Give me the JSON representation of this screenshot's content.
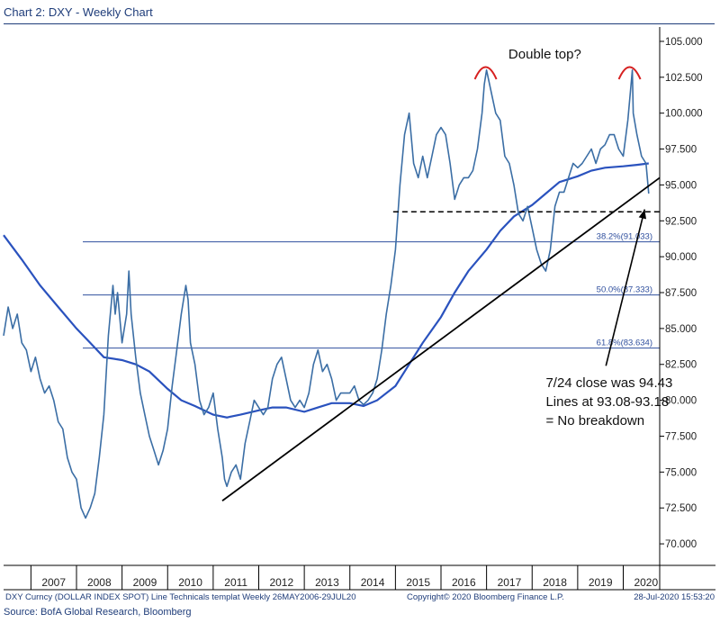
{
  "header": {
    "title": "Chart 2: DXY - Weekly Chart"
  },
  "footer": {
    "left": "DXY Curncy (DOLLAR INDEX SPOT) Line Technicals templat  Weekly 26MAY2006-29JUL20",
    "center": "Copyright© 2020 Bloomberg Finance L.P.",
    "right": "28-Jul-2020 15:53:20",
    "source": "Source: BofA Global Research, Bloomberg"
  },
  "chart_data": {
    "type": "line",
    "title": "",
    "xlabel": "",
    "ylabel": "",
    "xlim": [
      2006.4,
      2020.8
    ],
    "ylim": [
      68.5,
      106
    ],
    "x_ticks": [
      "2007",
      "2008",
      "2009",
      "2010",
      "2011",
      "2012",
      "2013",
      "2014",
      "2015",
      "2016",
      "2017",
      "2018",
      "2019",
      "2020"
    ],
    "y_ticks": [
      "105.000",
      "102.500",
      "100.000",
      "97.500",
      "95.000",
      "92.500",
      "90.000",
      "87.500",
      "85.000",
      "82.500",
      "80.000",
      "77.500",
      "75.000",
      "72.500",
      "70.000"
    ],
    "grid": false,
    "colors": {
      "price": "#3b6ea5",
      "ma": "#2a52be",
      "fib": "#2f4f9e",
      "trend": "#000000",
      "arc": "#d62020"
    },
    "series": [
      {
        "x": [
          2006.4,
          2006.5,
          2006.6,
          2006.7,
          2006.8,
          2006.9,
          2007.0,
          2007.1,
          2007.2,
          2007.3,
          2007.4,
          2007.5,
          2007.6,
          2007.7,
          2007.8,
          2007.9,
          2008.0,
          2008.1,
          2008.2,
          2008.3,
          2008.4,
          2008.5,
          2008.6,
          2008.7,
          2008.8,
          2008.85,
          2008.9,
          2009.0,
          2009.1,
          2009.15,
          2009.2,
          2009.3,
          2009.4,
          2009.5,
          2009.6,
          2009.7,
          2009.8,
          2009.9,
          2010.0,
          2010.1,
          2010.2,
          2010.3,
          2010.4,
          2010.45,
          2010.5,
          2010.6,
          2010.7,
          2010.8,
          2010.9,
          2011.0,
          2011.1,
          2011.2,
          2011.25,
          2011.3,
          2011.4,
          2011.5,
          2011.6,
          2011.7,
          2011.8,
          2011.9,
          2012.0,
          2012.1,
          2012.2,
          2012.3,
          2012.4,
          2012.5,
          2012.6,
          2012.7,
          2012.8,
          2012.9,
          2013.0,
          2013.1,
          2013.2,
          2013.3,
          2013.4,
          2013.5,
          2013.6,
          2013.7,
          2013.8,
          2013.9,
          2014.0,
          2014.1,
          2014.2,
          2014.3,
          2014.4,
          2014.5,
          2014.6,
          2014.7,
          2014.8,
          2014.9,
          2015.0,
          2015.1,
          2015.2,
          2015.3,
          2015.4,
          2015.5,
          2015.6,
          2015.7,
          2015.8,
          2015.9,
          2016.0,
          2016.1,
          2016.2,
          2016.3,
          2016.4,
          2016.5,
          2016.6,
          2016.7,
          2016.8,
          2016.9,
          2016.95,
          2017.0,
          2017.1,
          2017.2,
          2017.3,
          2017.4,
          2017.5,
          2017.6,
          2017.7,
          2017.8,
          2017.9,
          2018.0,
          2018.1,
          2018.2,
          2018.3,
          2018.4,
          2018.5,
          2018.6,
          2018.7,
          2018.8,
          2018.9,
          2019.0,
          2019.1,
          2019.2,
          2019.3,
          2019.4,
          2019.5,
          2019.6,
          2019.7,
          2019.8,
          2019.9,
          2020.0,
          2020.1,
          2020.2,
          2020.22,
          2020.3,
          2020.4,
          2020.5,
          2020.56
        ],
        "y": [
          84.5,
          86.5,
          85.0,
          86.0,
          84.0,
          83.5,
          82.0,
          83.0,
          81.5,
          80.5,
          81.0,
          80.0,
          78.5,
          78.0,
          76.0,
          75.0,
          74.5,
          72.5,
          71.8,
          72.5,
          73.5,
          76.0,
          79.0,
          84.5,
          88.0,
          86.0,
          87.5,
          84.0,
          86.0,
          89.0,
          86.0,
          83.0,
          80.5,
          79.0,
          77.5,
          76.5,
          75.5,
          76.5,
          78.0,
          81.0,
          83.5,
          86.0,
          88.0,
          87.0,
          84.0,
          82.5,
          80.0,
          79.0,
          79.5,
          80.5,
          78.0,
          76.0,
          74.5,
          74.0,
          75.0,
          75.5,
          74.5,
          77.0,
          78.5,
          80.0,
          79.5,
          79.0,
          79.5,
          81.5,
          82.5,
          83.0,
          81.5,
          80.0,
          79.5,
          80.0,
          79.5,
          80.5,
          82.5,
          83.5,
          82.0,
          82.5,
          81.5,
          80.0,
          80.5,
          80.5,
          80.5,
          81.0,
          80.0,
          79.7,
          80.0,
          80.5,
          81.5,
          83.5,
          86.0,
          88.0,
          90.5,
          95.0,
          98.5,
          100.0,
          96.5,
          95.5,
          97.0,
          95.5,
          97.0,
          98.5,
          99.0,
          98.5,
          96.5,
          94.0,
          95.0,
          95.5,
          95.5,
          96.0,
          97.5,
          100.0,
          102.0,
          103.0,
          101.5,
          100.0,
          99.5,
          97.0,
          96.5,
          95.0,
          93.0,
          92.5,
          93.5,
          92.0,
          90.5,
          89.5,
          89.0,
          90.5,
          93.5,
          94.5,
          94.5,
          95.5,
          96.5,
          96.2,
          96.5,
          97.0,
          97.5,
          96.5,
          97.5,
          97.8,
          98.5,
          98.5,
          97.5,
          97.0,
          99.5,
          103.0,
          100.0,
          98.5,
          97.0,
          96.5,
          94.4
        ]
      },
      {
        "x": [
          2006.4,
          2006.8,
          2007.2,
          2007.6,
          2008.0,
          2008.3,
          2008.6,
          2009.0,
          2009.3,
          2009.6,
          2010.0,
          2010.3,
          2010.6,
          2011.0,
          2011.3,
          2011.6,
          2012.0,
          2012.3,
          2012.6,
          2013.0,
          2013.3,
          2013.6,
          2014.0,
          2014.3,
          2014.6,
          2015.0,
          2015.3,
          2015.6,
          2016.0,
          2016.3,
          2016.6,
          2017.0,
          2017.3,
          2017.6,
          2018.0,
          2018.3,
          2018.6,
          2019.0,
          2019.3,
          2019.6,
          2020.0,
          2020.3,
          2020.56
        ],
        "y": [
          91.5,
          89.8,
          88.0,
          86.5,
          85.0,
          84.0,
          83.0,
          82.8,
          82.5,
          82.0,
          80.8,
          80.0,
          79.6,
          79.0,
          78.8,
          79.0,
          79.3,
          79.5,
          79.5,
          79.2,
          79.5,
          79.8,
          79.8,
          79.6,
          80.0,
          81.0,
          82.5,
          84.0,
          85.8,
          87.5,
          89.0,
          90.5,
          91.8,
          92.8,
          93.6,
          94.4,
          95.2,
          95.6,
          96.0,
          96.2,
          96.3,
          96.4,
          96.5
        ]
      }
    ],
    "fib_levels": [
      {
        "label": "38.2%(91.033)",
        "y": 91.033
      },
      {
        "label": "50.0%(87.333)",
        "y": 87.333
      },
      {
        "label": "61.8%(83.634)",
        "y": 83.634
      }
    ],
    "support_level": 93.13,
    "support_x": [
      2014.95,
      2020.8
    ],
    "trendline": {
      "x": [
        2011.2,
        2020.8
      ],
      "y": [
        73.0,
        95.5
      ]
    },
    "arcs": [
      {
        "x": 2016.98,
        "y": 102.8
      },
      {
        "x": 2020.14,
        "y": 102.8
      }
    ],
    "arrow": {
      "from": [
        2019.62,
        82.4
      ],
      "to": [
        2020.47,
        93.3
      ]
    },
    "annotations": {
      "double_top": "Double top?",
      "note_lines": [
        "7/24 close was 94.43",
        "Lines at 93.08-93.18",
        "= No breakdown"
      ]
    }
  }
}
